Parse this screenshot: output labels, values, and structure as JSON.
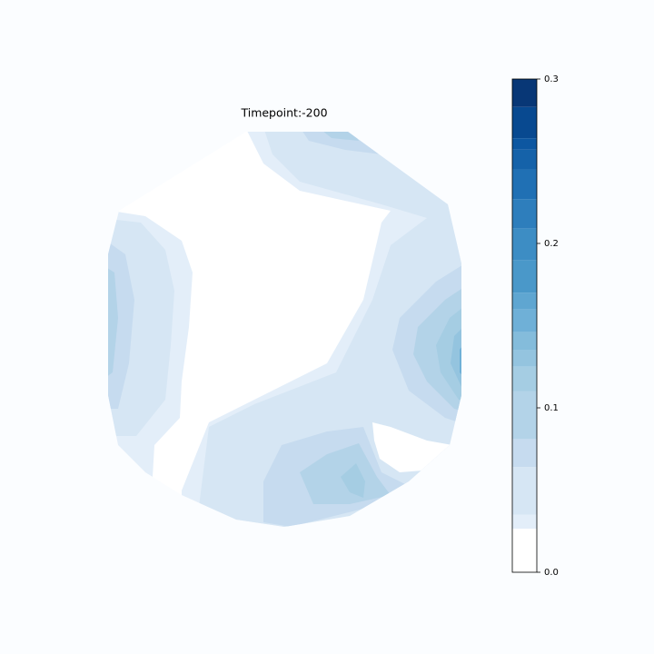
{
  "chart_data": {
    "type": "topomap",
    "title": "Timepoint:-200",
    "colorbar": {
      "levels": [
        0,
        0.0265,
        0.035,
        0.064,
        0.081,
        0.11,
        0.125,
        0.135,
        0.146,
        0.16,
        0.17,
        0.19,
        0.209,
        0.227,
        0.245,
        0.257,
        0.264,
        0.283,
        0.3
      ],
      "colors": [
        "#ffffff",
        "#e3eef9",
        "#d6e6f4",
        "#c6dbef",
        "#b3d3e8",
        "#a5cde3",
        "#94c4df",
        "#84bcdb",
        "#6fb0d7",
        "#5fa6d1",
        "#4a98c9",
        "#3d8dc4",
        "#2e7ebc",
        "#2070b4",
        "#1562a9",
        "#0d57a1",
        "#084990",
        "#083776"
      ],
      "lim": [
        0,
        0.3
      ],
      "ticks": [
        {
          "value": 0,
          "label": "0.0"
        },
        0.1,
        0.2,
        0.3
      ]
    }
  }
}
